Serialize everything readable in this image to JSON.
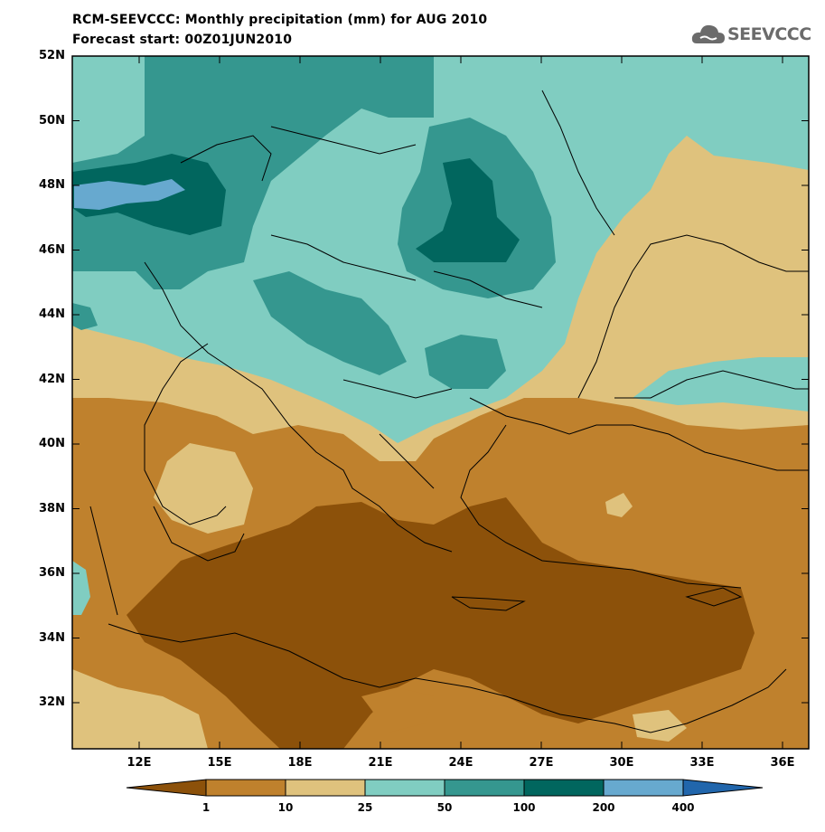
{
  "title_line1": "RCM-SEEVCCC: Monthly precipitation (mm) for AUG 2010",
  "title_line2": "Forecast start: 00Z01JUN2010",
  "logo_text": "SEEVCCC",
  "lat_labels": [
    "52N",
    "50N",
    "48N",
    "46N",
    "44N",
    "42N",
    "40N",
    "38N",
    "36N",
    "34N",
    "32N"
  ],
  "lon_labels": [
    "12E",
    "15E",
    "18E",
    "21E",
    "24E",
    "27E",
    "30E",
    "33E",
    "36E"
  ],
  "colorbar": {
    "levels": [
      "1",
      "10",
      "25",
      "50",
      "100",
      "200",
      "400"
    ],
    "colors": [
      "#8c510a",
      "#bf812d",
      "#dfc27d",
      "#80cdc1",
      "#35978f",
      "#01665e",
      "#67a9cf",
      "#2166ac"
    ]
  }
}
